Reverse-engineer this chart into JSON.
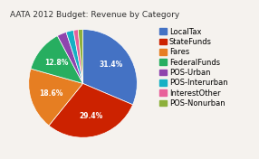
{
  "title": "AATA 2012 Budget: Revenue by Category",
  "labels": [
    "LocalTax",
    "StateFunds",
    "Fares",
    "FederalFunds",
    "POS-Urban",
    "POS-Interurban",
    "InterestOther",
    "POS-Nonurban"
  ],
  "values": [
    31.4,
    29.4,
    18.6,
    12.8,
    2.8,
    2.2,
    1.4,
    1.4
  ],
  "colors": [
    "#4472c4",
    "#cc2200",
    "#e67e22",
    "#27ae60",
    "#8e44ad",
    "#16b0c4",
    "#e8609a",
    "#8db03b"
  ],
  "startangle": 90,
  "background_color": "#f5f2ee",
  "title_fontsize": 6.5,
  "legend_fontsize": 6.0,
  "pct_fontsize": 5.5
}
